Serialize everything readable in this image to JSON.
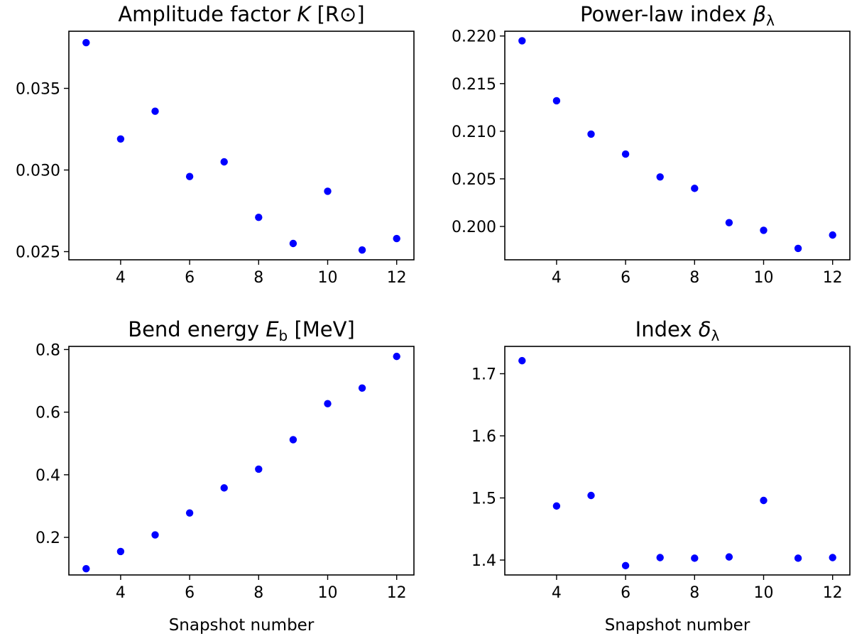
{
  "chart_data": [
    {
      "id": "amplitude",
      "type": "scatter",
      "title": "Amplitude factor K [R⊙]",
      "title_parts": {
        "base": "Amplitude factor ",
        "var": "K",
        "unit": " [R⊙]"
      },
      "xlabel": "",
      "ylabel": "",
      "xlim": [
        2.5,
        12.5
      ],
      "ylim": [
        0.0245,
        0.0385
      ],
      "xticks": [
        4,
        6,
        8,
        10,
        12
      ],
      "xtick_labels": [
        "4",
        "6",
        "8",
        "10",
        "12"
      ],
      "yticks": [
        0.025,
        0.03,
        0.035
      ],
      "ytick_labels": [
        "0.025",
        "0.030",
        "0.035"
      ],
      "x": [
        3,
        4,
        5,
        6,
        7,
        8,
        9,
        10,
        11,
        12
      ],
      "y": [
        0.0378,
        0.0319,
        0.0336,
        0.0296,
        0.0305,
        0.0271,
        0.0255,
        0.0287,
        0.0251,
        0.0258
      ],
      "color": "#0000ff"
    },
    {
      "id": "beta",
      "type": "scatter",
      "title": "Power-law index βλ",
      "title_parts": {
        "base": "Power-law index  ",
        "var": "β",
        "sub": "λ"
      },
      "xlabel": "",
      "ylabel": "",
      "xlim": [
        2.5,
        12.5
      ],
      "ylim": [
        0.1965,
        0.2205
      ],
      "xticks": [
        4,
        6,
        8,
        10,
        12
      ],
      "xtick_labels": [
        "4",
        "6",
        "8",
        "10",
        "12"
      ],
      "yticks": [
        0.2,
        0.205,
        0.21,
        0.215,
        0.22
      ],
      "ytick_labels": [
        "0.200",
        "0.205",
        "0.210",
        "0.215",
        "0.220"
      ],
      "x": [
        3,
        4,
        5,
        6,
        7,
        8,
        9,
        10,
        11,
        12
      ],
      "y": [
        0.2195,
        0.2132,
        0.2097,
        0.2076,
        0.2052,
        0.204,
        0.2004,
        0.1996,
        0.1977,
        0.1991
      ],
      "color": "#0000ff"
    },
    {
      "id": "bend-energy",
      "type": "scatter",
      "title": "Bend energy Eb [MeV]",
      "title_parts": {
        "base": "Bend energy  ",
        "var": "E",
        "sub": "b",
        "unit": " [MeV]"
      },
      "xlabel": "Snapshot number",
      "ylabel": "",
      "xlim": [
        2.5,
        12.5
      ],
      "ylim": [
        0.08,
        0.81
      ],
      "xticks": [
        4,
        6,
        8,
        10,
        12
      ],
      "xtick_labels": [
        "4",
        "6",
        "8",
        "10",
        "12"
      ],
      "yticks": [
        0.2,
        0.4,
        0.6,
        0.8
      ],
      "ytick_labels": [
        "0.2",
        "0.4",
        "0.6",
        "0.8"
      ],
      "x": [
        3,
        4,
        5,
        6,
        7,
        8,
        9,
        10,
        11,
        12
      ],
      "y": [
        0.1,
        0.155,
        0.208,
        0.278,
        0.358,
        0.418,
        0.512,
        0.627,
        0.677,
        0.778
      ],
      "color": "#0000ff"
    },
    {
      "id": "delta",
      "type": "scatter",
      "title": "Index δλ",
      "title_parts": {
        "base": "Index  ",
        "var": "δ",
        "sub": "λ"
      },
      "xlabel": "Snapshot number",
      "ylabel": "",
      "xlim": [
        2.5,
        12.5
      ],
      "ylim": [
        1.376,
        1.744
      ],
      "xticks": [
        4,
        6,
        8,
        10,
        12
      ],
      "xtick_labels": [
        "4",
        "6",
        "8",
        "10",
        "12"
      ],
      "yticks": [
        1.4,
        1.5,
        1.6,
        1.7
      ],
      "ytick_labels": [
        "1.4",
        "1.5",
        "1.6",
        "1.7"
      ],
      "x": [
        3,
        4,
        5,
        6,
        7,
        8,
        9,
        10,
        11,
        12
      ],
      "y": [
        1.721,
        1.487,
        1.504,
        1.391,
        1.404,
        1.403,
        1.405,
        1.496,
        1.403,
        1.404
      ],
      "color": "#0000ff"
    }
  ]
}
